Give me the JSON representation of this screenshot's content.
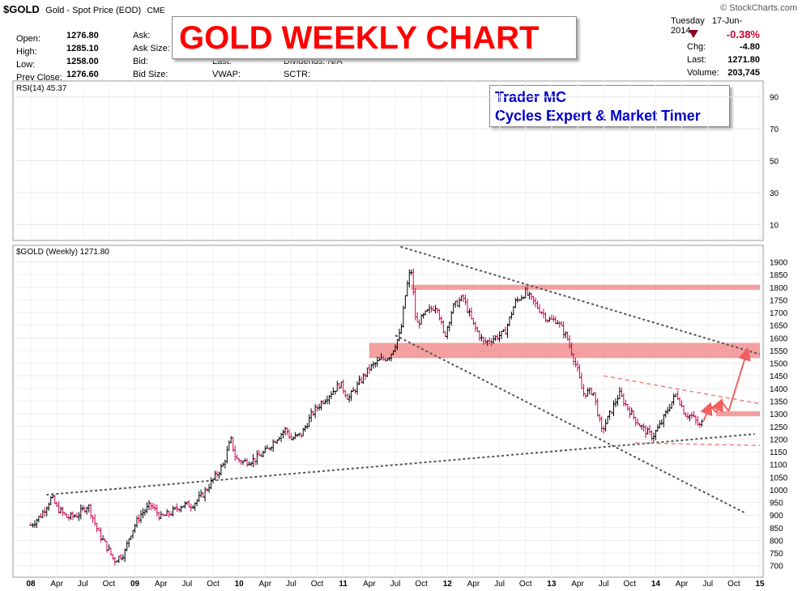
{
  "header": {
    "ticker": "$GOLD",
    "description": "Gold - Spot Price (EOD)",
    "exchange": "CME",
    "brand": "© StockCharts.com",
    "date_day": "Tuesday",
    "date": "17-Jun-2014",
    "pct_change": "-0.38%",
    "labels_left": [
      "Open:",
      "High:",
      "Low:",
      "Prev Close:"
    ],
    "values_left": [
      "1276.80",
      "1285.10",
      "1258.00",
      "1276.60"
    ],
    "labels_mid": [
      "Ask:",
      "Ask Size:",
      "Bid:",
      "Bid Size:"
    ],
    "labels_mid2": [
      "Last:",
      "VWAP:"
    ],
    "labels_mid3": [
      "Dividends: N/A",
      "SCTR:"
    ],
    "labels_right": [
      "Chg:",
      "Last:",
      "Volume:"
    ],
    "values_right": [
      "-4.80",
      "1271.80",
      "203,745"
    ]
  },
  "title_box": "GOLD WEEKLY CHART",
  "trader_box": {
    "line1": "Trader MC",
    "line2": "Cycles Expert & Market Timer"
  },
  "colors": {
    "accent_red": "#ff0000",
    "band": "#f08080",
    "trend": "#555555",
    "blue_text": "#0000cc"
  },
  "chart_data": [
    {
      "type": "line",
      "title": "RSI(14) 45.37",
      "yticks": [
        10,
        30,
        50,
        70,
        90
      ],
      "ylim": [
        0,
        100
      ],
      "grid": true
    },
    {
      "type": "bar",
      "title": "$GOLD (Weekly) 1271.80",
      "ylim": [
        680,
        1940
      ],
      "yticks": [
        700,
        750,
        800,
        850,
        900,
        950,
        1000,
        1050,
        1100,
        1150,
        1200,
        1250,
        1300,
        1350,
        1400,
        1450,
        1500,
        1550,
        1600,
        1650,
        1700,
        1750,
        1800,
        1850,
        1900
      ],
      "xticks": [
        "08",
        "Apr",
        "Jul",
        "Oct",
        "09",
        "Apr",
        "Jul",
        "Oct",
        "10",
        "Apr",
        "Jul",
        "Oct",
        "11",
        "Apr",
        "Jul",
        "Oct",
        "12",
        "Apr",
        "Jul",
        "Oct",
        "13",
        "Apr",
        "Jul",
        "Oct",
        "14",
        "Apr",
        "Jul",
        "Oct",
        "15"
      ],
      "x_start": 2008.0,
      "x_end": 2015.0,
      "price": [
        [
          2008.0,
          860
        ],
        [
          2008.1,
          900
        ],
        [
          2008.2,
          970
        ],
        [
          2008.25,
          930
        ],
        [
          2008.35,
          890
        ],
        [
          2008.45,
          900
        ],
        [
          2008.55,
          940
        ],
        [
          2008.65,
          830
        ],
        [
          2008.75,
          760
        ],
        [
          2008.8,
          720
        ],
        [
          2008.9,
          750
        ],
        [
          2008.95,
          820
        ],
        [
          2009.05,
          900
        ],
        [
          2009.15,
          940
        ],
        [
          2009.25,
          890
        ],
        [
          2009.35,
          910
        ],
        [
          2009.45,
          940
        ],
        [
          2009.55,
          940
        ],
        [
          2009.65,
          980
        ],
        [
          2009.75,
          1040
        ],
        [
          2009.85,
          1100
        ],
        [
          2009.92,
          1200
        ],
        [
          2009.97,
          1120
        ],
        [
          2010.05,
          1110
        ],
        [
          2010.15,
          1120
        ],
        [
          2010.25,
          1150
        ],
        [
          2010.35,
          1200
        ],
        [
          2010.45,
          1240
        ],
        [
          2010.5,
          1200
        ],
        [
          2010.6,
          1220
        ],
        [
          2010.7,
          1300
        ],
        [
          2010.8,
          1350
        ],
        [
          2010.9,
          1390
        ],
        [
          2010.97,
          1420
        ],
        [
          2011.05,
          1360
        ],
        [
          2011.15,
          1420
        ],
        [
          2011.25,
          1480
        ],
        [
          2011.35,
          1510
        ],
        [
          2011.45,
          1530
        ],
        [
          2011.55,
          1620
        ],
        [
          2011.6,
          1780
        ],
        [
          2011.65,
          1880
        ],
        [
          2011.7,
          1650
        ],
        [
          2011.8,
          1700
        ],
        [
          2011.9,
          1730
        ],
        [
          2011.97,
          1600
        ],
        [
          2012.05,
          1720
        ],
        [
          2012.15,
          1760
        ],
        [
          2012.25,
          1650
        ],
        [
          2012.35,
          1580
        ],
        [
          2012.45,
          1600
        ],
        [
          2012.55,
          1620
        ],
        [
          2012.65,
          1740
        ],
        [
          2012.75,
          1780
        ],
        [
          2012.85,
          1730
        ],
        [
          2012.97,
          1670
        ],
        [
          2013.05,
          1670
        ],
        [
          2013.15,
          1600
        ],
        [
          2013.25,
          1470
        ],
        [
          2013.3,
          1380
        ],
        [
          2013.4,
          1390
        ],
        [
          2013.48,
          1230
        ],
        [
          2013.55,
          1290
        ],
        [
          2013.65,
          1380
        ],
        [
          2013.72,
          1330
        ],
        [
          2013.8,
          1280
        ],
        [
          2013.88,
          1240
        ],
        [
          2013.97,
          1210
        ],
        [
          2014.05,
          1260
        ],
        [
          2014.13,
          1330
        ],
        [
          2014.2,
          1380
        ],
        [
          2014.28,
          1300
        ],
        [
          2014.35,
          1290
        ],
        [
          2014.42,
          1250
        ],
        [
          2014.46,
          1272
        ]
      ],
      "projection": [
        [
          2014.46,
          1272
        ],
        [
          2014.52,
          1335
        ],
        [
          2014.58,
          1305
        ],
        [
          2014.63,
          1350
        ],
        [
          2014.7,
          1310
        ],
        [
          2014.88,
          1550
        ]
      ],
      "support_bands": [
        {
          "y0": 1790,
          "y1": 1810,
          "x0": 2011.65,
          "x1": 2015.0
        },
        {
          "y0": 1520,
          "y1": 1580,
          "x0": 2011.25,
          "x1": 2015.0
        },
        {
          "y0": 1290,
          "y1": 1310,
          "x0": 2014.58,
          "x1": 2015.0
        }
      ],
      "trend_lines": [
        {
          "x0": 2008.15,
          "y0": 980,
          "x1": 2014.95,
          "y1": 1220,
          "style": "dotted"
        },
        {
          "x0": 2011.55,
          "y0": 1960,
          "x1": 2015.0,
          "y1": 1535,
          "style": "dotted"
        },
        {
          "x0": 2011.5,
          "y0": 1610,
          "x1": 2014.85,
          "y1": 910,
          "style": "dotted"
        }
      ],
      "red_dashed_lines": [
        {
          "x0": 2013.5,
          "y0": 1450,
          "x1": 2015.0,
          "y1": 1340
        },
        {
          "x0": 2013.8,
          "y0": 1185,
          "x1": 2015.0,
          "y1": 1175
        }
      ]
    }
  ]
}
